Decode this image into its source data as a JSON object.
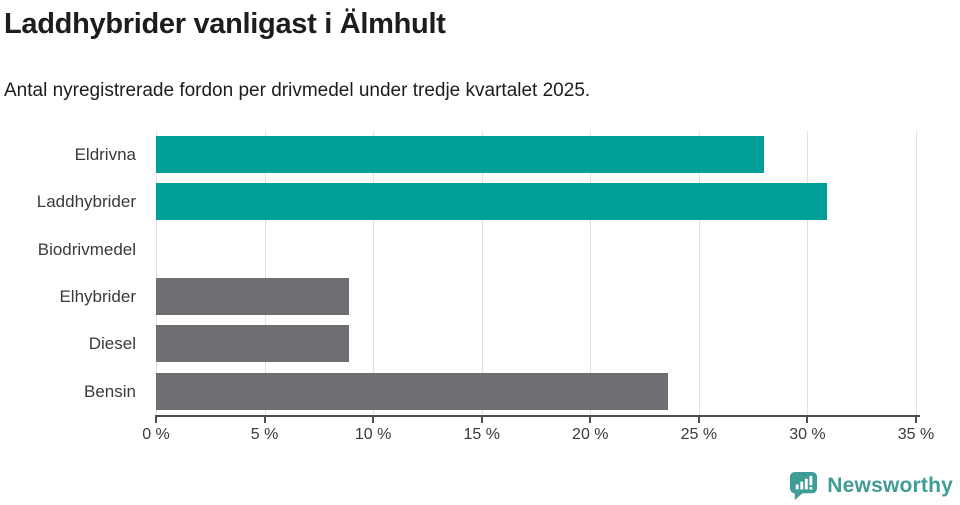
{
  "header": {
    "title": "Laddhybrider vanligast i Älmhult",
    "subtitle": "Antal nyregistrerade fordon per drivmedel under tredje kvartalet 2025."
  },
  "chart_data": {
    "type": "bar",
    "orientation": "horizontal",
    "title": "Laddhybrider vanligast i Älmhult",
    "subtitle": "Antal nyregistrerade fordon per drivmedel under tredje kvartalet 2025.",
    "categories": [
      "Eldrivna",
      "Laddhybrider",
      "Biodrivmedel",
      "Elhybrider",
      "Diesel",
      "Bensin"
    ],
    "values": [
      28,
      30.9,
      0,
      8.9,
      8.9,
      23.6
    ],
    "unit": "%",
    "xlabel": "",
    "ylabel": "",
    "xlim": [
      0,
      35
    ],
    "x_ticks": [
      0,
      5,
      10,
      15,
      20,
      25,
      30,
      35
    ],
    "x_tick_labels": [
      "0 %",
      "5 %",
      "10 %",
      "15 %",
      "20 %",
      "25 %",
      "30 %",
      "35 %"
    ],
    "grid": "vertical",
    "legend": "none",
    "bar_colors": [
      "#00a099",
      "#00a099",
      "#6e6e73",
      "#6e6e73",
      "#6e6e73",
      "#6e6e73"
    ]
  },
  "colors": {
    "highlight_teal": "#00a099",
    "default_gray": "#6e6e73",
    "axis": "#4d4d4d",
    "gridline": "#e0e0e0",
    "text_dark": "#1d1d1b",
    "label_gray": "#3a3a3a",
    "brand_teal": "#3f9c96"
  },
  "footer": {
    "brand": "Newsworthy",
    "logo_icon": "bar-chart-speech-bubble-icon"
  }
}
